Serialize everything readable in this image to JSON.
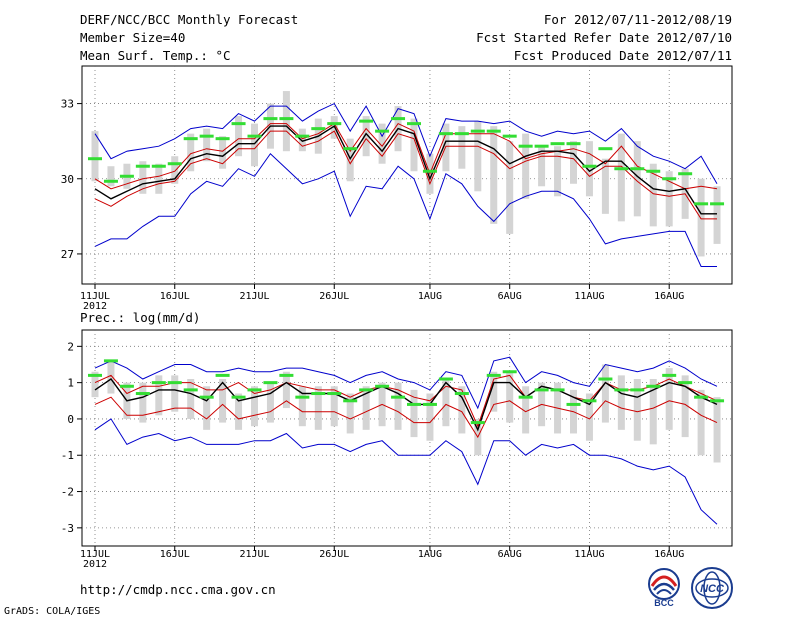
{
  "header": {
    "title": "DERF/NCC/BCC Monthly Forecast",
    "member_size": "Member Size=40",
    "variable_1": "Mean Surf. Temp.: °C",
    "period": "For 2012/07/11-2012/08/19",
    "started": "Fcst Started Refer Date 2012/07/10",
    "produced": "Fcst Produced Date 2012/07/11"
  },
  "footer": {
    "url": "http://cmdp.ncc.cma.gov.cn",
    "credit": "GrADS: COLA/IGES",
    "logo_bcc": "BCC",
    "logo_ncc": "NCC"
  },
  "colors": {
    "blue": "#0000cc",
    "red": "#cc0000",
    "black": "#000000",
    "green": "#33dd33",
    "box": "#d4d4d4",
    "grid": "#777777"
  },
  "chart_data": [
    {
      "type": "line",
      "title": "Mean Surf. Temp.: °C",
      "x_labels": [
        "11JUL",
        "16JUL",
        "21JUL",
        "26JUL",
        "1AUG",
        "6AUG",
        "11AUG",
        "16AUG"
      ],
      "x_label_sub": "2012",
      "ylim": [
        25.8,
        34.5
      ],
      "y_ticks": [
        "27",
        "30",
        "33"
      ],
      "y_tick_values": [
        27,
        30,
        33
      ],
      "series": [
        {
          "name": "max",
          "color": "blue",
          "values": [
            31.8,
            30.8,
            31.1,
            31.2,
            31.3,
            31.6,
            32.0,
            32.1,
            32.0,
            32.6,
            32.3,
            32.9,
            32.9,
            32.3,
            32.7,
            33.0,
            31.9,
            32.9,
            31.7,
            32.8,
            32.6,
            30.9,
            32.4,
            32.3,
            32.3,
            32.2,
            32.3,
            31.9,
            31.7,
            31.9,
            31.8,
            31.9,
            31.5,
            32.0,
            31.3,
            30.9,
            30.7,
            30.4,
            30.9,
            29.8
          ]
        },
        {
          "name": "upper",
          "color": "red",
          "values": [
            30.0,
            29.6,
            29.8,
            30.0,
            30.1,
            30.3,
            31.0,
            31.2,
            31.1,
            31.6,
            31.6,
            32.2,
            32.2,
            31.6,
            31.8,
            32.2,
            31.1,
            32.0,
            31.3,
            32.2,
            31.9,
            30.2,
            31.8,
            31.8,
            31.8,
            31.8,
            31.5,
            30.8,
            31.0,
            31.1,
            31.2,
            31.0,
            30.6,
            31.3,
            30.5,
            30.2,
            29.9,
            29.6,
            29.7,
            29.6
          ]
        },
        {
          "name": "mean",
          "color": "black",
          "values": [
            29.6,
            29.2,
            29.5,
            29.8,
            29.9,
            30.0,
            30.8,
            31.0,
            30.9,
            31.4,
            31.4,
            32.1,
            32.1,
            31.5,
            31.7,
            32.1,
            30.8,
            31.8,
            31.1,
            32.0,
            31.8,
            30.0,
            31.5,
            31.5,
            31.5,
            31.2,
            30.6,
            30.9,
            31.1,
            31.1,
            31.0,
            30.3,
            30.7,
            30.7,
            30.1,
            29.6,
            29.5,
            29.6,
            28.6,
            28.6
          ]
        },
        {
          "name": "lower",
          "color": "red",
          "values": [
            29.2,
            28.9,
            29.3,
            29.6,
            29.8,
            29.9,
            30.6,
            30.8,
            30.6,
            31.2,
            31.2,
            31.9,
            31.9,
            31.3,
            31.5,
            31.9,
            30.6,
            31.6,
            30.9,
            31.8,
            31.6,
            29.8,
            31.3,
            31.3,
            31.3,
            31.0,
            30.4,
            30.7,
            30.9,
            30.9,
            30.8,
            30.1,
            30.5,
            30.5,
            29.9,
            29.4,
            29.3,
            29.4,
            28.4,
            28.4
          ]
        },
        {
          "name": "min",
          "color": "blue",
          "values": [
            27.3,
            27.6,
            27.6,
            28.1,
            28.5,
            28.5,
            29.4,
            29.9,
            29.7,
            30.4,
            30.1,
            31.0,
            30.4,
            29.8,
            30.0,
            30.3,
            28.5,
            29.7,
            29.6,
            30.5,
            30.0,
            28.4,
            30.2,
            29.8,
            28.9,
            28.3,
            29.0,
            29.3,
            29.5,
            29.5,
            29.2,
            28.4,
            27.4,
            27.6,
            27.7,
            27.8,
            27.9,
            27.9,
            26.5,
            26.5
          ]
        }
      ],
      "boxes": [
        [
          31.9,
          29.9
        ],
        [
          30.5,
          29.7
        ],
        [
          30.6,
          29.6
        ],
        [
          30.7,
          29.4
        ],
        [
          30.6,
          29.4
        ],
        [
          30.9,
          29.8
        ],
        [
          31.8,
          30.3
        ],
        [
          32.0,
          30.7
        ],
        [
          31.7,
          30.4
        ],
        [
          32.5,
          30.9
        ],
        [
          32.2,
          30.5
        ],
        [
          33.0,
          31.2
        ],
        [
          33.5,
          31.1
        ],
        [
          32.0,
          31.1
        ],
        [
          32.4,
          31.0
        ],
        [
          32.5,
          31.6
        ],
        [
          31.6,
          29.9
        ],
        [
          32.5,
          30.9
        ],
        [
          32.2,
          30.6
        ],
        [
          32.9,
          31.1
        ],
        [
          32.4,
          30.3
        ],
        [
          31.0,
          29.4
        ],
        [
          32.2,
          30.3
        ],
        [
          32.1,
          30.4
        ],
        [
          32.3,
          29.5
        ],
        [
          32.1,
          28.2
        ],
        [
          31.5,
          27.8
        ],
        [
          31.8,
          29.2
        ],
        [
          31.3,
          29.7
        ],
        [
          31.3,
          29.3
        ],
        [
          31.5,
          29.8
        ],
        [
          31.5,
          29.3
        ],
        [
          30.8,
          28.6
        ],
        [
          31.8,
          28.3
        ],
        [
          31.5,
          28.5
        ],
        [
          30.6,
          28.1
        ],
        [
          30.3,
          28.1
        ],
        [
          30.4,
          28.4
        ],
        [
          30.0,
          26.9
        ],
        [
          29.7,
          27.4
        ]
      ],
      "markers": [
        30.8,
        29.9,
        30.1,
        30.5,
        30.5,
        30.6,
        31.6,
        31.7,
        31.6,
        32.2,
        31.7,
        32.4,
        32.4,
        31.7,
        32.0,
        32.2,
        31.2,
        32.3,
        31.9,
        32.4,
        32.2,
        30.3,
        31.8,
        31.8,
        31.9,
        31.9,
        31.7,
        31.3,
        31.3,
        31.4,
        31.4,
        30.5,
        31.2,
        30.4,
        30.4,
        30.3,
        30.0,
        30.2,
        29.0,
        29.0
      ]
    },
    {
      "type": "line",
      "title": "Prec.: log(mm/d)",
      "x_labels": [
        "11JUL",
        "16JUL",
        "21JUL",
        "26JUL",
        "1AUG",
        "6AUG",
        "11AUG",
        "16AUG"
      ],
      "x_label_sub": "2012",
      "ylim": [
        -3.5,
        2.45
      ],
      "y_ticks": [
        "-3",
        "-2",
        "-1",
        "0",
        "1",
        "2"
      ],
      "y_tick_values": [
        -3,
        -2,
        -1,
        0,
        1,
        2
      ],
      "series": [
        {
          "name": "max",
          "color": "blue",
          "values": [
            1.4,
            1.6,
            1.4,
            1.1,
            1.3,
            1.5,
            1.5,
            1.3,
            1.3,
            1.4,
            1.3,
            1.3,
            1.4,
            1.4,
            1.3,
            1.2,
            1.0,
            1.2,
            1.3,
            1.1,
            1.0,
            0.8,
            1.3,
            1.2,
            0.3,
            1.6,
            1.7,
            1.0,
            1.3,
            1.2,
            1.0,
            0.9,
            1.5,
            1.4,
            1.3,
            1.4,
            1.6,
            1.4,
            1.1,
            0.9
          ]
        },
        {
          "name": "upper",
          "color": "red",
          "values": [
            1.0,
            1.2,
            0.7,
            0.9,
            0.9,
            1.0,
            1.0,
            0.8,
            0.8,
            1.0,
            0.7,
            0.8,
            1.0,
            0.9,
            0.8,
            0.8,
            0.6,
            0.8,
            0.9,
            0.8,
            0.6,
            0.5,
            0.9,
            0.8,
            -0.2,
            1.1,
            1.2,
            0.6,
            0.9,
            0.8,
            0.6,
            0.5,
            1.0,
            0.8,
            0.8,
            0.9,
            1.1,
            0.9,
            0.7,
            0.5
          ]
        },
        {
          "name": "mean",
          "color": "black",
          "values": [
            0.8,
            1.1,
            0.5,
            0.6,
            0.8,
            0.8,
            0.7,
            0.5,
            1.0,
            0.5,
            0.6,
            0.7,
            1.0,
            0.7,
            0.7,
            0.7,
            0.5,
            0.7,
            0.9,
            0.7,
            0.4,
            0.4,
            1.0,
            0.6,
            -0.3,
            1.0,
            1.0,
            0.6,
            0.9,
            0.8,
            0.6,
            0.4,
            1.0,
            0.7,
            0.6,
            0.8,
            1.0,
            0.9,
            0.6,
            0.4
          ]
        },
        {
          "name": "lower",
          "color": "red",
          "values": [
            0.4,
            0.6,
            0.1,
            0.1,
            0.2,
            0.3,
            0.3,
            0.0,
            0.4,
            0.0,
            0.1,
            0.2,
            0.5,
            0.2,
            0.2,
            0.2,
            0.0,
            0.2,
            0.4,
            0.2,
            -0.1,
            -0.1,
            0.4,
            0.2,
            -0.5,
            0.4,
            0.5,
            0.2,
            0.4,
            0.3,
            0.2,
            0.0,
            0.5,
            0.3,
            0.2,
            0.3,
            0.5,
            0.4,
            0.1,
            -0.1
          ]
        },
        {
          "name": "min",
          "color": "blue",
          "values": [
            -0.3,
            0.0,
            -0.7,
            -0.5,
            -0.4,
            -0.6,
            -0.5,
            -0.7,
            -0.7,
            -0.7,
            -0.6,
            -0.6,
            -0.4,
            -0.8,
            -0.7,
            -0.7,
            -0.9,
            -0.7,
            -0.6,
            -1.0,
            -1.0,
            -1.0,
            -0.6,
            -0.9,
            -1.8,
            -0.6,
            -0.6,
            -1.0,
            -0.7,
            -0.8,
            -0.7,
            -1.0,
            -1.0,
            -1.1,
            -1.3,
            -1.4,
            -1.3,
            -1.6,
            -2.5,
            -2.9
          ]
        }
      ],
      "boxes": [
        [
          1.3,
          0.6
        ],
        [
          1.6,
          0.7
        ],
        [
          1.0,
          0.0
        ],
        [
          1.0,
          -0.1
        ],
        [
          1.2,
          0.1
        ],
        [
          1.2,
          0.2
        ],
        [
          1.1,
          0.0
        ],
        [
          0.9,
          -0.3
        ],
        [
          1.1,
          -0.1
        ],
        [
          0.7,
          -0.3
        ],
        [
          0.9,
          -0.2
        ],
        [
          1.0,
          -0.1
        ],
        [
          1.3,
          0.3
        ],
        [
          0.9,
          -0.2
        ],
        [
          0.9,
          -0.3
        ],
        [
          0.9,
          -0.2
        ],
        [
          0.7,
          -0.4
        ],
        [
          0.9,
          -0.3
        ],
        [
          1.0,
          -0.2
        ],
        [
          1.0,
          -0.3
        ],
        [
          0.8,
          -0.5
        ],
        [
          0.7,
          -0.6
        ],
        [
          1.1,
          -0.2
        ],
        [
          0.9,
          -0.4
        ],
        [
          0.0,
          -1.0
        ],
        [
          1.3,
          0.2
        ],
        [
          1.3,
          -0.1
        ],
        [
          0.9,
          -0.4
        ],
        [
          1.0,
          -0.2
        ],
        [
          1.0,
          -0.4
        ],
        [
          0.8,
          -0.4
        ],
        [
          0.7,
          -0.6
        ],
        [
          1.5,
          -0.1
        ],
        [
          1.2,
          -0.3
        ],
        [
          1.1,
          -0.6
        ],
        [
          1.1,
          -0.7
        ],
        [
          1.4,
          -0.3
        ],
        [
          1.2,
          -0.5
        ],
        [
          0.8,
          -1.0
        ],
        [
          0.6,
          -1.2
        ]
      ],
      "markers": [
        1.2,
        1.6,
        0.9,
        0.7,
        1.0,
        1.0,
        0.8,
        0.6,
        1.2,
        0.6,
        0.8,
        1.0,
        1.2,
        0.6,
        0.7,
        0.7,
        0.5,
        0.8,
        0.9,
        0.6,
        0.4,
        0.4,
        1.1,
        0.7,
        -0.1,
        1.2,
        1.3,
        0.6,
        0.8,
        0.8,
        0.4,
        0.5,
        1.1,
        0.8,
        0.8,
        0.9,
        1.2,
        1.0,
        0.6,
        0.5
      ]
    }
  ]
}
